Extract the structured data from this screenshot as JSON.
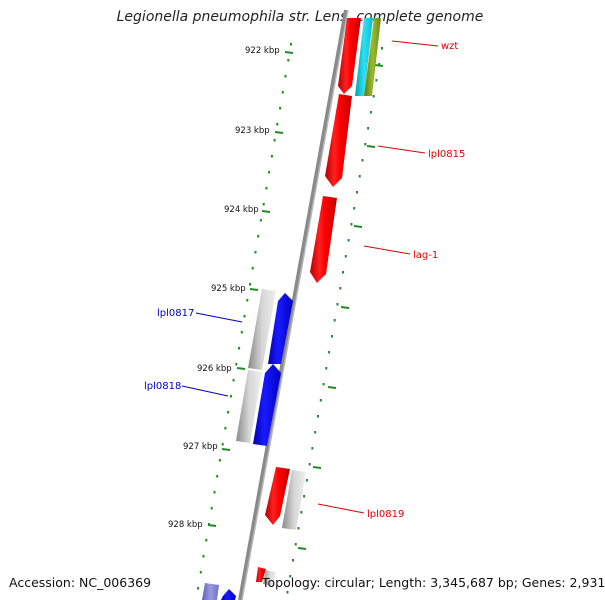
{
  "title": "Legionella pneumophila str. Lens, complete genome",
  "accession": "Accession: NC_006369",
  "topology": "Topology: circular; Length: 3,345,687 bp; Genes: 2,931",
  "ticks": [
    "922 kbp",
    "923 kbp",
    "924 kbp",
    "925 kbp",
    "926 kbp",
    "927 kbp",
    "928 kbp"
  ],
  "gene_labels": [
    {
      "text": "wzt",
      "color": "#dd0000"
    },
    {
      "text": "lpl0815",
      "color": "#dd0000"
    },
    {
      "text": "lag-1",
      "color": "#dd0000"
    },
    {
      "text": "lpl0817",
      "color": "#0000cc"
    },
    {
      "text": "lpl0818",
      "color": "#0000cc"
    },
    {
      "text": "lpl0819",
      "color": "#dd0000"
    }
  ],
  "colors": {
    "forward_gene": "#ff0000",
    "reverse_gene": "#0000ff",
    "other_gene": "#c0c0c0",
    "tick": "#228b22",
    "backbone": "#808080",
    "cyan_feature": "#00c8d8",
    "olive_feature": "#7a9a1a"
  }
}
